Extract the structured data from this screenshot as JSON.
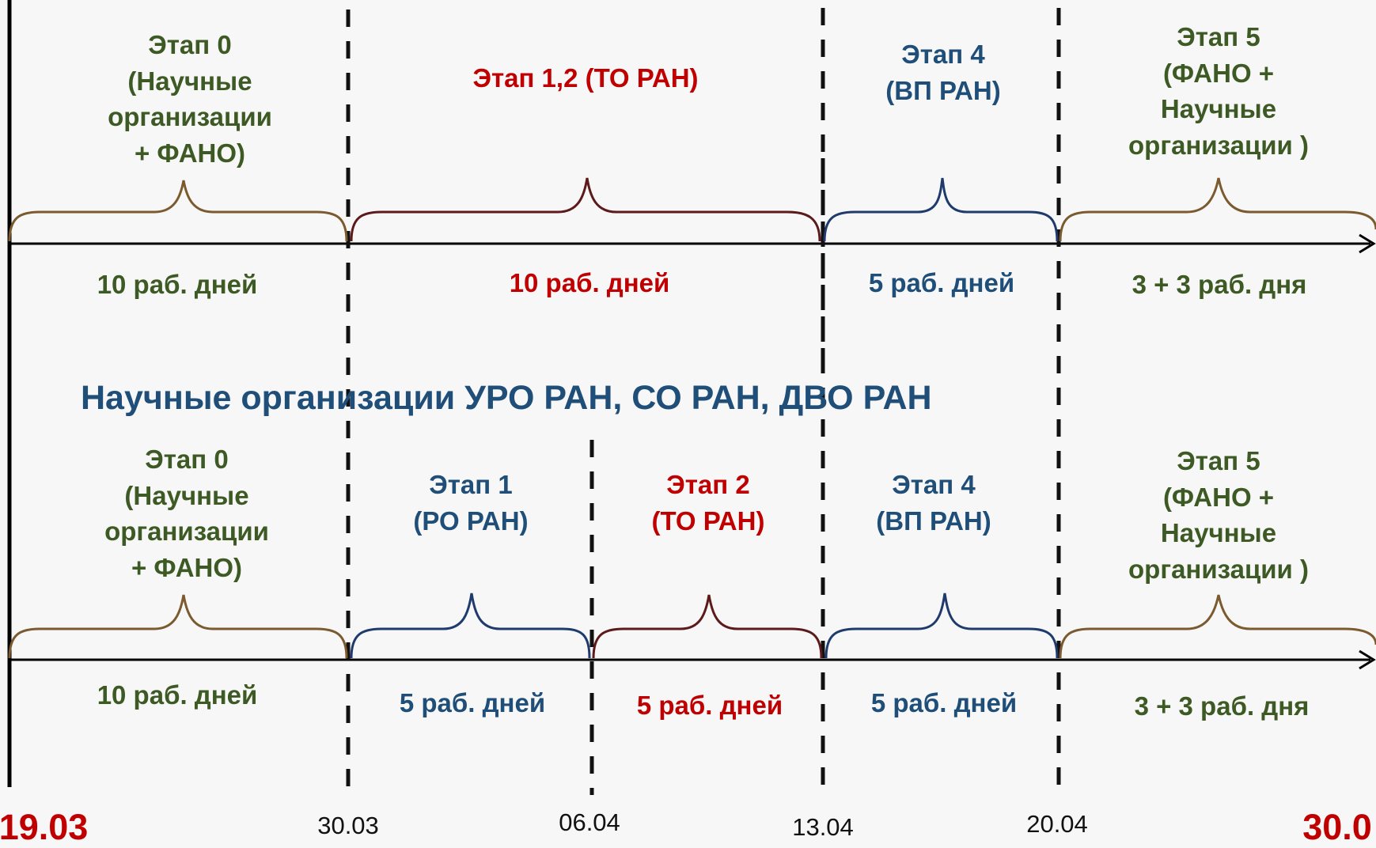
{
  "top": {
    "stage0": [
      "Этап 0",
      "(Научные",
      "организации",
      "+ ФАНО)"
    ],
    "stage12": "Этап 1,2 (ТО РАН)",
    "stage4": [
      "Этап 4",
      "(ВП РАН)"
    ],
    "stage5": [
      "Этап 5",
      "(ФАНО +",
      "Научные",
      "организации )"
    ],
    "dur0": "10  раб. дней",
    "dur12": "10 раб. дней",
    "dur4": "5 раб. дней",
    "dur5": "3 + 3 раб. дня"
  },
  "heading": "Научные организации УРО РАН, СО РАН, ДВО РАН",
  "bottom": {
    "stage0": [
      "Этап 0",
      "(Научные",
      "организации",
      "+ ФАНО)"
    ],
    "stage1": [
      "Этап 1",
      "(РО РАН)"
    ],
    "stage2": [
      "Этап 2",
      "(ТО РАН)"
    ],
    "stage4": [
      "Этап 4",
      "(ВП РАН)"
    ],
    "stage5": [
      "Этап 5",
      "(ФАНО +",
      "Научные",
      "организации )"
    ],
    "dur0": "10  раб. дней",
    "dur1": "5 раб. дней",
    "dur2": "5 раб. дней",
    "dur4": "5 раб. дней",
    "dur5": "3 + 3 раб. дня"
  },
  "dates": {
    "start": "19.03",
    "d1": "30.03",
    "d2": "06.04",
    "d3": "13.04",
    "d4": "20.04",
    "end": "30.0"
  },
  "colors": {
    "green": "#3d5a24",
    "red": "#c00000",
    "blue": "#1f4e79",
    "brace_green": "#7a5a2e",
    "brace_red": "#5c1a1a",
    "brace_blue": "#1f3b6e"
  }
}
